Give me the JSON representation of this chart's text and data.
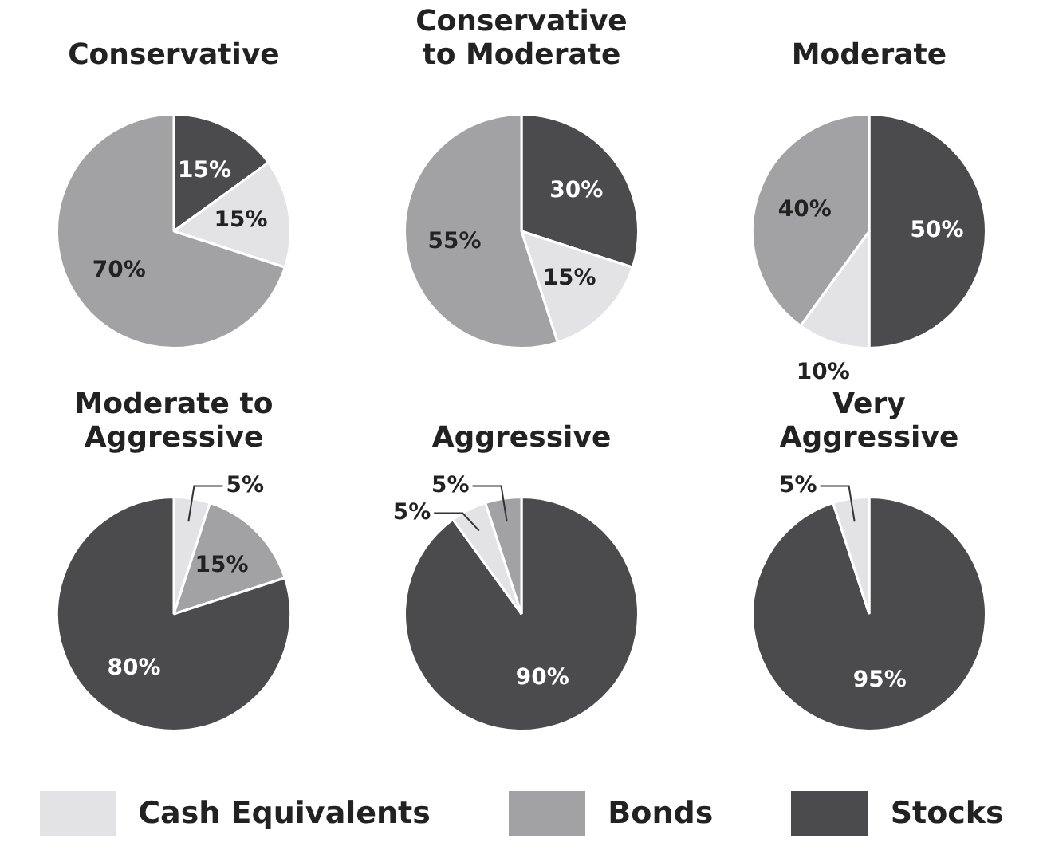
{
  "chart_data": [
    {
      "type": "pie",
      "title": "Conservative",
      "categories": [
        "Stocks",
        "Cash Equivalents",
        "Bonds"
      ],
      "values": [
        15,
        15,
        70
      ],
      "colors": [
        "#4b4b4d",
        "#e3e3e5",
        "#a2a2a4"
      ],
      "value_labels": [
        "15%",
        "15%",
        "70%"
      ],
      "legend": "bottom"
    },
    {
      "type": "pie",
      "title": "Conservative to Moderate",
      "categories": [
        null,
        null,
        null
      ],
      "values": [
        30,
        15,
        55
      ],
      "colors": [
        "#4b4b4d",
        "#e3e3e5",
        "#a2a2a4"
      ],
      "value_labels": [
        "30%",
        "15%",
        "55%"
      ]
    },
    {
      "type": "pie",
      "title": "Moderate",
      "categories": [
        null,
        null,
        null
      ],
      "values": [
        50,
        10,
        40
      ],
      "colors": [
        "#4b4b4d",
        "#e3e3e5",
        "#a2a2a4"
      ],
      "value_labels": [
        "50%",
        "10%",
        "40%"
      ]
    },
    {
      "type": "pie",
      "title": "Moderate to Aggressive",
      "categories": [
        null,
        null,
        null
      ],
      "values": [
        5,
        15,
        80
      ],
      "colors": [
        "#e3e3e5",
        "#a2a2a4",
        "#4b4b4d"
      ],
      "value_labels": [
        "5%",
        "15%",
        "80%"
      ]
    },
    {
      "type": "pie",
      "title": "Aggressive",
      "categories": [
        null,
        null,
        null
      ],
      "values": [
        90,
        5,
        5
      ],
      "colors": [
        "#4b4b4d",
        "#e3e3e5",
        "#a2a2a4"
      ],
      "value_labels": [
        "90%",
        "5%",
        "5%"
      ]
    },
    {
      "type": "pie",
      "title": "Very Aggressive",
      "categories": [
        null,
        null
      ],
      "values": [
        95,
        5
      ],
      "colors": [
        "#4b4b4d",
        "#e3e3e5"
      ],
      "value_labels": [
        "95%",
        "5%"
      ]
    }
  ]
}
